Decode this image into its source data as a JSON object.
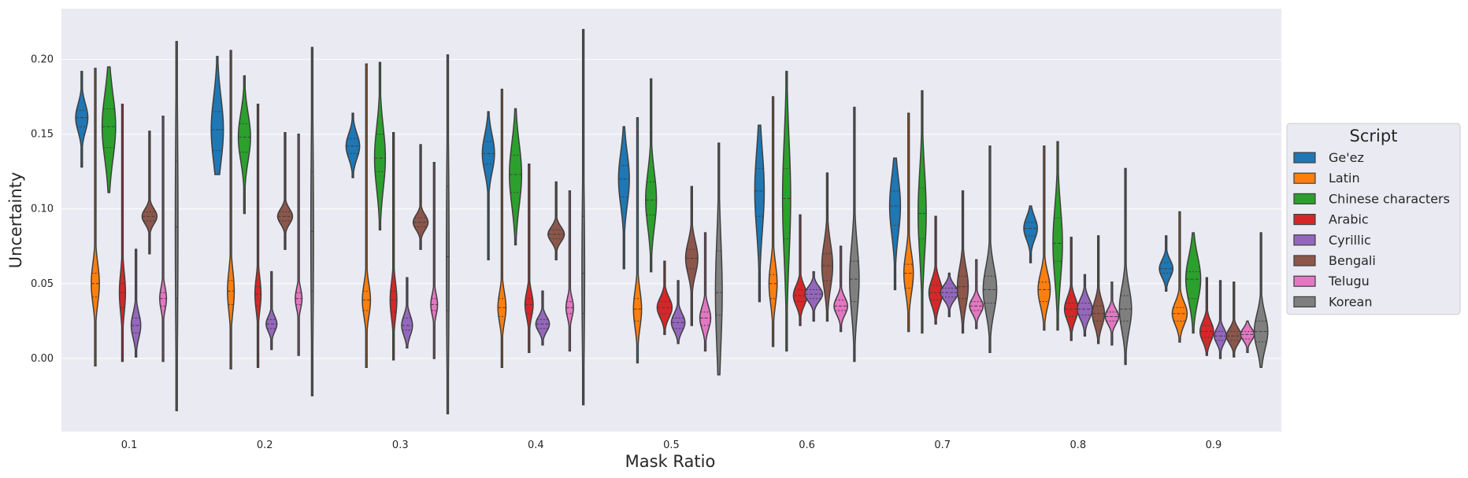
{
  "chart_data": {
    "type": "violin",
    "xlabel": "Mask Ratio",
    "ylabel": "Uncertainty",
    "categories": [
      "0.1",
      "0.2",
      "0.3",
      "0.4",
      "0.5",
      "0.6",
      "0.7",
      "0.8",
      "0.9"
    ],
    "ylim": [
      -0.049,
      0.234
    ],
    "yticks": [
      "0.00",
      "0.05",
      "0.10",
      "0.15",
      "0.20"
    ],
    "grid": true,
    "legend": {
      "title": "Script",
      "placement": "right"
    },
    "series": [
      {
        "name": "Ge'ez",
        "color": "#1f77b4",
        "violins": [
          {
            "min": 0.128,
            "q1": 0.155,
            "median": 0.161,
            "q3": 0.166,
            "max": 0.192,
            "width": 0.9
          },
          {
            "min": 0.123,
            "q1": 0.139,
            "median": 0.153,
            "q3": 0.165,
            "max": 0.202,
            "width": 0.9
          },
          {
            "min": 0.121,
            "q1": 0.137,
            "median": 0.142,
            "q3": 0.147,
            "max": 0.164,
            "width": 1.0
          },
          {
            "min": 0.066,
            "q1": 0.13,
            "median": 0.137,
            "q3": 0.145,
            "max": 0.165,
            "width": 0.9
          },
          {
            "min": 0.06,
            "q1": 0.108,
            "median": 0.12,
            "q3": 0.129,
            "max": 0.155,
            "width": 0.8
          },
          {
            "min": 0.038,
            "q1": 0.095,
            "median": 0.112,
            "q3": 0.127,
            "max": 0.156,
            "width": 0.7
          },
          {
            "min": 0.046,
            "q1": 0.089,
            "median": 0.102,
            "q3": 0.112,
            "max": 0.134,
            "width": 0.8
          },
          {
            "min": 0.064,
            "q1": 0.082,
            "median": 0.087,
            "q3": 0.091,
            "max": 0.102,
            "width": 1.0
          },
          {
            "min": 0.045,
            "q1": 0.057,
            "median": 0.06,
            "q3": 0.064,
            "max": 0.082,
            "width": 1.0
          }
        ]
      },
      {
        "name": "Latin",
        "color": "#ff7f0e",
        "violins": [
          {
            "min": -0.005,
            "q1": 0.041,
            "median": 0.05,
            "q3": 0.057,
            "max": 0.194,
            "width": 0.6
          },
          {
            "min": -0.007,
            "q1": 0.036,
            "median": 0.045,
            "q3": 0.052,
            "max": 0.206,
            "width": 0.5
          },
          {
            "min": -0.006,
            "q1": 0.032,
            "median": 0.039,
            "q3": 0.045,
            "max": 0.197,
            "width": 0.6
          },
          {
            "min": -0.006,
            "q1": 0.028,
            "median": 0.034,
            "q3": 0.04,
            "max": 0.18,
            "width": 0.6
          },
          {
            "min": -0.003,
            "q1": 0.025,
            "median": 0.033,
            "q3": 0.04,
            "max": 0.161,
            "width": 0.6
          },
          {
            "min": 0.008,
            "q1": 0.04,
            "median": 0.05,
            "q3": 0.056,
            "max": 0.175,
            "width": 0.6
          },
          {
            "min": 0.018,
            "q1": 0.047,
            "median": 0.057,
            "q3": 0.063,
            "max": 0.164,
            "width": 0.7
          },
          {
            "min": 0.019,
            "q1": 0.038,
            "median": 0.046,
            "q3": 0.051,
            "max": 0.142,
            "width": 0.9
          },
          {
            "min": 0.011,
            "q1": 0.025,
            "median": 0.03,
            "q3": 0.034,
            "max": 0.098,
            "width": 1.1
          }
        ]
      },
      {
        "name": "Chinese characters",
        "color": "#2ca02c",
        "violins": [
          {
            "min": 0.111,
            "q1": 0.141,
            "median": 0.155,
            "q3": 0.167,
            "max": 0.195,
            "width": 1.0
          },
          {
            "min": 0.097,
            "q1": 0.138,
            "median": 0.148,
            "q3": 0.157,
            "max": 0.189,
            "width": 0.9
          },
          {
            "min": 0.086,
            "q1": 0.125,
            "median": 0.134,
            "q3": 0.15,
            "max": 0.198,
            "width": 0.8
          },
          {
            "min": 0.076,
            "q1": 0.111,
            "median": 0.123,
            "q3": 0.136,
            "max": 0.167,
            "width": 0.9
          },
          {
            "min": 0.058,
            "q1": 0.096,
            "median": 0.106,
            "q3": 0.118,
            "max": 0.187,
            "width": 0.8
          },
          {
            "min": 0.005,
            "q1": 0.08,
            "median": 0.107,
            "q3": 0.127,
            "max": 0.192,
            "width": 0.6
          },
          {
            "min": 0.017,
            "q1": 0.08,
            "median": 0.097,
            "q3": 0.114,
            "max": 0.179,
            "width": 0.6
          },
          {
            "min": 0.019,
            "q1": 0.065,
            "median": 0.077,
            "q3": 0.094,
            "max": 0.145,
            "width": 0.7
          },
          {
            "min": 0.017,
            "q1": 0.04,
            "median": 0.053,
            "q3": 0.058,
            "max": 0.084,
            "width": 1.1
          }
        ]
      },
      {
        "name": "Arabic",
        "color": "#d62728",
        "violins": [
          {
            "min": -0.002,
            "q1": 0.034,
            "median": 0.044,
            "q3": 0.05,
            "max": 0.17,
            "width": 0.45
          },
          {
            "min": -0.006,
            "q1": 0.035,
            "median": 0.043,
            "q3": 0.048,
            "max": 0.17,
            "width": 0.45
          },
          {
            "min": -0.001,
            "q1": 0.031,
            "median": 0.039,
            "q3": 0.045,
            "max": 0.151,
            "width": 0.5
          },
          {
            "min": 0.004,
            "q1": 0.03,
            "median": 0.036,
            "q3": 0.04,
            "max": 0.13,
            "width": 0.6
          },
          {
            "min": 0.016,
            "q1": 0.03,
            "median": 0.034,
            "q3": 0.038,
            "max": 0.065,
            "width": 1.1
          },
          {
            "min": 0.022,
            "q1": 0.038,
            "median": 0.042,
            "q3": 0.046,
            "max": 0.096,
            "width": 1.0
          },
          {
            "min": 0.023,
            "q1": 0.039,
            "median": 0.044,
            "q3": 0.049,
            "max": 0.095,
            "width": 1.0
          },
          {
            "min": 0.012,
            "q1": 0.028,
            "median": 0.033,
            "q3": 0.037,
            "max": 0.081,
            "width": 1.0
          },
          {
            "min": 0.002,
            "q1": 0.014,
            "median": 0.018,
            "q3": 0.022,
            "max": 0.054,
            "width": 1.0
          }
        ]
      },
      {
        "name": "Cyrillic",
        "color": "#9467bd",
        "violins": [
          {
            "min": 0.001,
            "q1": 0.017,
            "median": 0.022,
            "q3": 0.027,
            "max": 0.073,
            "width": 0.7
          },
          {
            "min": 0.006,
            "q1": 0.02,
            "median": 0.023,
            "q3": 0.026,
            "max": 0.058,
            "width": 0.8
          },
          {
            "min": 0.007,
            "q1": 0.019,
            "median": 0.022,
            "q3": 0.027,
            "max": 0.054,
            "width": 0.8
          },
          {
            "min": 0.009,
            "q1": 0.02,
            "median": 0.023,
            "q3": 0.026,
            "max": 0.045,
            "width": 1.0
          },
          {
            "min": 0.01,
            "q1": 0.02,
            "median": 0.024,
            "q3": 0.027,
            "max": 0.052,
            "width": 1.0
          },
          {
            "min": 0.025,
            "q1": 0.04,
            "median": 0.043,
            "q3": 0.046,
            "max": 0.058,
            "width": 1.3
          },
          {
            "min": 0.028,
            "q1": 0.041,
            "median": 0.044,
            "q3": 0.047,
            "max": 0.057,
            "width": 1.3
          },
          {
            "min": 0.015,
            "q1": 0.029,
            "median": 0.033,
            "q3": 0.037,
            "max": 0.056,
            "width": 1.1
          },
          {
            "min": 0.0,
            "q1": 0.012,
            "median": 0.015,
            "q3": 0.018,
            "max": 0.052,
            "width": 0.9
          }
        ]
      },
      {
        "name": "Bengali",
        "color": "#8c564b",
        "violins": [
          {
            "min": 0.07,
            "q1": 0.092,
            "median": 0.095,
            "q3": 0.098,
            "max": 0.152,
            "width": 1.1
          },
          {
            "min": 0.073,
            "q1": 0.092,
            "median": 0.095,
            "q3": 0.098,
            "max": 0.151,
            "width": 1.1
          },
          {
            "min": 0.073,
            "q1": 0.088,
            "median": 0.091,
            "q3": 0.094,
            "max": 0.143,
            "width": 1.1
          },
          {
            "min": 0.066,
            "q1": 0.08,
            "median": 0.083,
            "q3": 0.086,
            "max": 0.118,
            "width": 1.2
          },
          {
            "min": 0.022,
            "q1": 0.06,
            "median": 0.067,
            "q3": 0.073,
            "max": 0.115,
            "width": 0.9
          },
          {
            "min": 0.025,
            "q1": 0.052,
            "median": 0.062,
            "q3": 0.07,
            "max": 0.124,
            "width": 0.8
          },
          {
            "min": 0.017,
            "q1": 0.04,
            "median": 0.048,
            "q3": 0.055,
            "max": 0.112,
            "width": 0.8
          },
          {
            "min": 0.01,
            "q1": 0.025,
            "median": 0.03,
            "q3": 0.035,
            "max": 0.082,
            "width": 0.9
          },
          {
            "min": 0.001,
            "q1": 0.012,
            "median": 0.015,
            "q3": 0.018,
            "max": 0.051,
            "width": 1.1
          }
        ]
      },
      {
        "name": "Telugu",
        "color": "#e377c2",
        "violins": [
          {
            "min": -0.002,
            "q1": 0.035,
            "median": 0.04,
            "q3": 0.044,
            "max": 0.162,
            "width": 0.5
          },
          {
            "min": 0.002,
            "q1": 0.036,
            "median": 0.04,
            "q3": 0.044,
            "max": 0.15,
            "width": 0.5
          },
          {
            "min": 0.0,
            "q1": 0.032,
            "median": 0.036,
            "q3": 0.04,
            "max": 0.131,
            "width": 0.5
          },
          {
            "min": 0.005,
            "q1": 0.03,
            "median": 0.034,
            "q3": 0.038,
            "max": 0.112,
            "width": 0.55
          },
          {
            "min": 0.005,
            "q1": 0.022,
            "median": 0.027,
            "q3": 0.031,
            "max": 0.084,
            "width": 0.8
          },
          {
            "min": 0.018,
            "q1": 0.032,
            "median": 0.035,
            "q3": 0.039,
            "max": 0.075,
            "width": 1.0
          },
          {
            "min": 0.02,
            "q1": 0.032,
            "median": 0.035,
            "q3": 0.038,
            "max": 0.066,
            "width": 1.0
          },
          {
            "min": 0.009,
            "q1": 0.025,
            "median": 0.028,
            "q3": 0.031,
            "max": 0.051,
            "width": 1.0
          },
          {
            "min": 0.004,
            "q1": 0.013,
            "median": 0.016,
            "q3": 0.018,
            "max": 0.025,
            "width": 1.0
          }
        ]
      },
      {
        "name": "Korean",
        "color": "#7f7f7f",
        "violins": [
          {
            "min": -0.035,
            "q1": 0.04,
            "median": 0.088,
            "q3": 0.132,
            "max": 0.212,
            "width": 0.2
          },
          {
            "min": -0.025,
            "q1": 0.045,
            "median": 0.085,
            "q3": 0.125,
            "max": 0.208,
            "width": 0.2
          },
          {
            "min": -0.037,
            "q1": 0.032,
            "median": 0.068,
            "q3": 0.115,
            "max": 0.203,
            "width": 0.2
          },
          {
            "min": -0.031,
            "q1": 0.03,
            "median": 0.057,
            "q3": 0.095,
            "max": 0.22,
            "width": 0.2
          },
          {
            "min": -0.011,
            "q1": 0.029,
            "median": 0.044,
            "q3": 0.072,
            "max": 0.144,
            "width": 0.5
          },
          {
            "min": -0.002,
            "q1": 0.038,
            "median": 0.053,
            "q3": 0.065,
            "max": 0.168,
            "width": 0.7
          },
          {
            "min": 0.004,
            "q1": 0.037,
            "median": 0.046,
            "q3": 0.055,
            "max": 0.142,
            "width": 1.0
          },
          {
            "min": -0.004,
            "q1": 0.025,
            "median": 0.033,
            "q3": 0.042,
            "max": 0.127,
            "width": 0.9
          },
          {
            "min": -0.006,
            "q1": 0.011,
            "median": 0.018,
            "q3": 0.025,
            "max": 0.084,
            "width": 1.0
          }
        ]
      }
    ]
  }
}
